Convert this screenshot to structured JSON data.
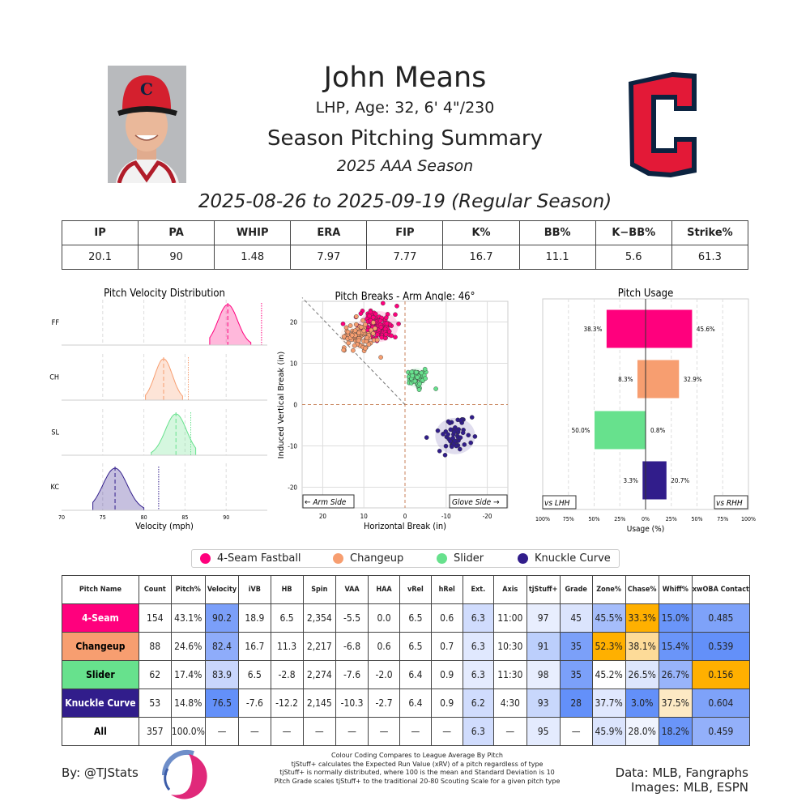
{
  "header": {
    "name": "John Means",
    "bio": "LHP, Age: 32, 6' 4\"/230",
    "title": "Season Pitching Summary",
    "season": "2025 AAA Season",
    "date_range": "2025-08-26 to 2025-09-19 (Regular Season)"
  },
  "stats": {
    "headers": [
      "IP",
      "PA",
      "WHIP",
      "ERA",
      "FIP",
      "K%",
      "BB%",
      "K−BB%",
      "Strike%"
    ],
    "values": [
      "20.1",
      "90",
      "1.48",
      "7.97",
      "7.77",
      "16.7",
      "11.1",
      "5.6",
      "61.3"
    ]
  },
  "pitch_colors": {
    "FF": "#FF007D",
    "CH": "#F79E70",
    "SL": "#67E18D",
    "KC": "#311D8B"
  },
  "legend": [
    {
      "label": "4-Seam Fastball",
      "color": "#FF007D"
    },
    {
      "label": "Changeup",
      "color": "#F79E70"
    },
    {
      "label": "Slider",
      "color": "#67E18D"
    },
    {
      "label": "Knuckle Curve",
      "color": "#311D8B"
    }
  ],
  "chart_data": [
    {
      "type": "area",
      "title": "Pitch Velocity Distribution",
      "xlabel": "Velocity (mph)",
      "xlim": [
        70,
        95
      ],
      "xticks": [
        "70",
        "75",
        "80",
        "85",
        "90"
      ],
      "series": [
        {
          "name": "FF",
          "color": "#FF007D",
          "mean": 90.2,
          "range": [
            88,
            93
          ],
          "ref": 94.3
        },
        {
          "name": "CH",
          "color": "#F79E70",
          "mean": 82.4,
          "range": [
            80.2,
            84.7
          ],
          "ref": 85.4
        },
        {
          "name": "SL",
          "color": "#67E18D",
          "mean": 83.9,
          "range": [
            80.9,
            86.3
          ],
          "ref": 85.7
        },
        {
          "name": "KC",
          "color": "#311D8B",
          "mean": 76.5,
          "range": [
            73.8,
            80
          ],
          "ref": 81.8
        }
      ]
    },
    {
      "type": "scatter",
      "title": "Pitch Breaks - Arm Angle: 46°",
      "xlabel": "Horizontal Break (in)",
      "ylabel": "Induced Vertical Break (in)",
      "xlim": [
        25,
        -25
      ],
      "ylim": [
        -25,
        25
      ],
      "xticks": [
        "20",
        "10",
        "0",
        "-10",
        "-20"
      ],
      "yticks": [
        "20",
        "10",
        "0",
        "-10",
        "-20"
      ],
      "arm_side": "← Arm Side",
      "glove_side": "Glove Side →",
      "arm_angle": 46,
      "series": [
        {
          "name": "FF",
          "color": "#FF007D",
          "n": 154,
          "hb": 6.5,
          "ivb": 18.9,
          "sd": [
            2.2,
            1.7
          ]
        },
        {
          "name": "CH",
          "color": "#F79E70",
          "n": 88,
          "hb": 11.3,
          "ivb": 16.7,
          "sd": [
            2.0,
            1.5
          ]
        },
        {
          "name": "SL",
          "color": "#67E18D",
          "n": 62,
          "hb": -2.8,
          "ivb": 6.5,
          "sd": [
            1.1,
            1.1
          ]
        },
        {
          "name": "KC",
          "color": "#311D8B",
          "n": 53,
          "hb": -12.2,
          "ivb": -7.6,
          "sd": [
            2.2,
            2.0
          ]
        }
      ]
    },
    {
      "type": "bar",
      "title": "Pitch Usage",
      "xlabel": "Usage (%)",
      "xlim": [
        -100,
        100
      ],
      "xticks": [
        "100%",
        "75%",
        "50%",
        "25%",
        "0%",
        "25%",
        "50%",
        "75%",
        "100%"
      ],
      "left_label": "vs LHH",
      "right_label": "vs RHH",
      "categories": [
        "FF",
        "CH",
        "SL",
        "KC"
      ],
      "series": [
        {
          "name": "vs LHH",
          "values": [
            38.3,
            8.3,
            50.0,
            3.3
          ],
          "labels": [
            "38.3%",
            "8.3%",
            "50.0%",
            "3.3%"
          ]
        },
        {
          "name": "vs RHH",
          "values": [
            45.6,
            32.9,
            0.8,
            20.7
          ],
          "labels": [
            "45.6%",
            "32.9%",
            "0.8%",
            "20.7%"
          ]
        }
      ]
    }
  ],
  "pitch_table": {
    "headers": [
      "Pitch Name",
      "Count",
      "Pitch%",
      "Velocity",
      "iVB",
      "HB",
      "Spin",
      "VAA",
      "HAA",
      "vRel",
      "hRel",
      "Ext.",
      "Axis",
      "tjStuff+",
      "Grade",
      "Zone%",
      "Chase%",
      "Whiff%",
      "xwOBA Contact"
    ],
    "rows": [
      {
        "name": "4-Seam",
        "bg": "#FF007D",
        "fg": "#ffffff",
        "cells": [
          "154",
          "43.1%",
          "90.2",
          "18.9",
          "6.5",
          "2,354",
          "-5.5",
          "0.0",
          "6.5",
          "0.6",
          "6.3",
          "11:00",
          "97",
          "45",
          "45.5%",
          "33.3%",
          "15.0%",
          "0.485"
        ],
        "colors": {
          "2": "#7b9ff9",
          "10": "#d0dcfd",
          "12": "#e8eefe",
          "13": "#dbe4fd",
          "14": "#a5bdfb",
          "15": "#ffb000",
          "16": "#6a95f9",
          "17": "#7ea2f9"
        }
      },
      {
        "name": "Changeup",
        "bg": "#F79E70",
        "fg": "#000000",
        "cells": [
          "88",
          "24.6%",
          "82.4",
          "16.7",
          "11.3",
          "2,217",
          "-6.8",
          "0.6",
          "6.5",
          "0.7",
          "6.3",
          "10:30",
          "91",
          "35",
          "52.3%",
          "38.1%",
          "15.4%",
          "0.539"
        ],
        "colors": {
          "2": "#8eacfa",
          "10": "#e0e8fe",
          "12": "#bccffc",
          "13": "#7ba0f9",
          "14": "#ffb000",
          "15": "#fddb98",
          "16": "#6a95f9",
          "17": "#6390f9"
        }
      },
      {
        "name": "Slider",
        "bg": "#67E18D",
        "fg": "#000000",
        "cells": [
          "62",
          "17.4%",
          "83.9",
          "6.5",
          "-2.8",
          "2,274",
          "-7.6",
          "-2.0",
          "6.4",
          "0.9",
          "6.3",
          "11:30",
          "98",
          "35",
          "45.2%",
          "26.5%",
          "26.7%",
          "0.156"
        ],
        "colors": {
          "2": "#c9d6fc",
          "10": "#e4ebfe",
          "12": "#e8eefe",
          "13": "#7ba0f9",
          "15": "#dde6fd",
          "16": "#98b4fa",
          "17": "#ffb000"
        }
      },
      {
        "name": "Knuckle Curve",
        "bg": "#311D8B",
        "fg": "#ffffff",
        "cells": [
          "53",
          "14.8%",
          "76.5",
          "-7.6",
          "-12.2",
          "2,145",
          "-10.3",
          "-2.7",
          "6.4",
          "0.9",
          "6.2",
          "4:30",
          "93",
          "28",
          "37.7%",
          "3.0%",
          "37.5%",
          "0.604"
        ],
        "colors": {
          "2": "#6390f9",
          "10": "#d0dcfd",
          "12": "#c8d7fc",
          "13": "#6390f9",
          "14": "#e0e8fe",
          "15": "#6390f9",
          "16": "#fde9c4",
          "17": "#7ea2f9"
        }
      },
      {
        "name": "All",
        "bg": "#ffffff",
        "fg": "#000000",
        "cells": [
          "357",
          "100.0%",
          "—",
          "—",
          "—",
          "—",
          "—",
          "—",
          "—",
          "—",
          "6.3",
          "—",
          "95",
          "—",
          "45.9%",
          "28.0%",
          "18.2%",
          "0.459"
        ],
        "colors": {
          "10": "#d0dcfd",
          "12": "#e4ebfe",
          "14": "#dbe4fd",
          "15": "#f0f4fe",
          "16": "#6a95f9",
          "17": "#93b0fa"
        }
      }
    ]
  },
  "footer": {
    "byline": "By: @TJStats",
    "notes": [
      "Colour Coding Compares to League Average By Pitch",
      "tjStuff+ calculates the Expected Run Value (xRV) of a pitch regardless of type",
      "tjStuff+ is normally distributed, where 100 is the mean and Standard Deviation is 10",
      "Pitch Grade scales tjStuff+ to the traditional 20-80 Scouting Scale for a given pitch type"
    ],
    "data_source": "Data: MLB, Fangraphs",
    "images_source": "Images: MLB, ESPN"
  }
}
